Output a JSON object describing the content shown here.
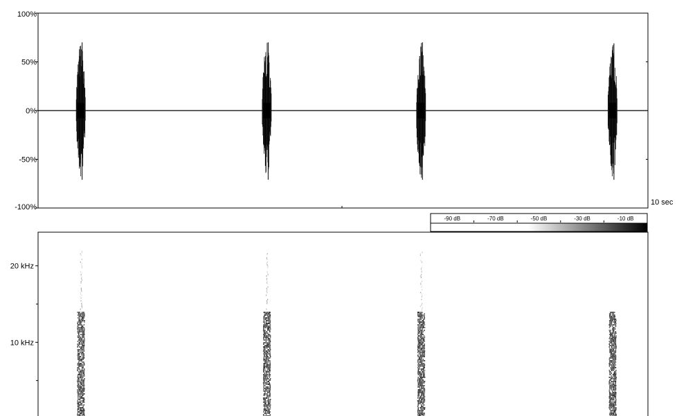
{
  "chart_data": [
    {
      "type": "line",
      "panel": "waveform",
      "xlabel": "",
      "ylabel": "",
      "x_unit_label": "10 sec",
      "xlim": [
        0,
        10
      ],
      "ylim": [
        -100,
        100
      ],
      "y_ticks": [
        {
          "value": 100,
          "label": "100%"
        },
        {
          "value": 50,
          "label": "50%"
        },
        {
          "value": 0,
          "label": "0%"
        },
        {
          "value": -50,
          "label": "-50%"
        },
        {
          "value": -100,
          "label": "-100%"
        }
      ],
      "bursts": [
        {
          "time": 0.7,
          "peak_positive": 70,
          "peak_negative": -71
        },
        {
          "time": 3.75,
          "peak_positive": 70,
          "peak_negative": -71
        },
        {
          "time": 6.28,
          "peak_positive": 70,
          "peak_negative": -71
        },
        {
          "time": 9.42,
          "peak_positive": 69,
          "peak_negative": -71
        }
      ],
      "grid": false
    },
    {
      "type": "heatmap",
      "panel": "spectrogram",
      "xlim": [
        0,
        10
      ],
      "y_ticks": [
        {
          "value": 20,
          "label": "20 kHz"
        },
        {
          "value": 10,
          "label": "10 kHz"
        }
      ],
      "bursts": [
        {
          "time": 0.7,
          "dense_max_khz": 14,
          "faint_max_khz": 22
        },
        {
          "time": 3.75,
          "dense_max_khz": 14,
          "faint_max_khz": 22
        },
        {
          "time": 6.28,
          "dense_max_khz": 14,
          "faint_max_khz": 22
        },
        {
          "time": 9.42,
          "dense_max_khz": 14,
          "faint_max_khz": 14
        }
      ],
      "colorbar": {
        "labels": [
          "-90 dB",
          "-70 dB",
          "-50 dB",
          "-30 dB",
          "-10 dB"
        ],
        "colors": [
          "#ffffff",
          "#000000"
        ]
      }
    }
  ]
}
